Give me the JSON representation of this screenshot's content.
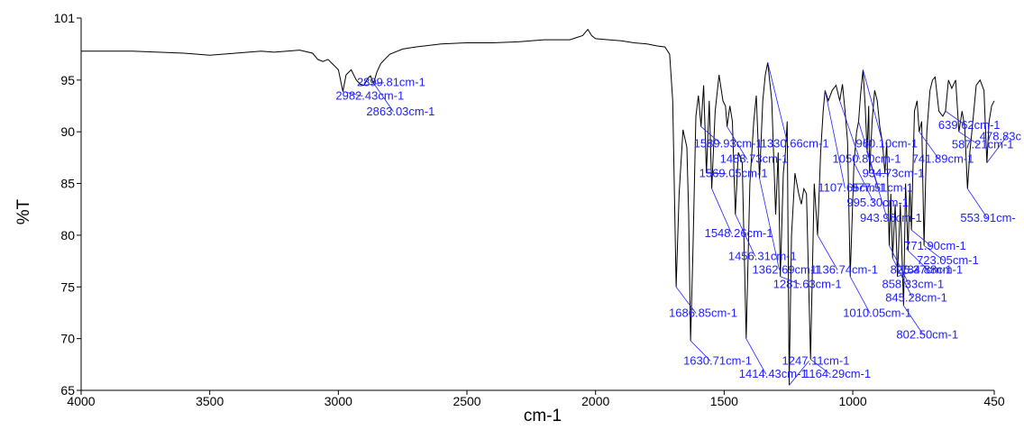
{
  "chart_data": {
    "type": "line",
    "title": "",
    "xlabel": "cm-1",
    "ylabel": "%T",
    "xlim": [
      4000,
      450
    ],
    "ylim": [
      65,
      101
    ],
    "x_reversed": true,
    "grid": false,
    "xticks": [
      4000,
      3500,
      3000,
      2500,
      2000,
      1500,
      1000,
      450
    ],
    "yticks": [
      65,
      70,
      75,
      80,
      85,
      90,
      95,
      101
    ],
    "series_color": "#000000",
    "annotation_color": "#2020ff",
    "spectrum": {
      "x": [
        4000,
        3900,
        3800,
        3700,
        3600,
        3500,
        3400,
        3300,
        3250,
        3200,
        3150,
        3100,
        3080,
        3060,
        3040,
        3020,
        3000,
        2982.43,
        2970,
        2950,
        2930,
        2915,
        2899.81,
        2885,
        2875,
        2863.03,
        2850,
        2835,
        2800,
        2750,
        2700,
        2600,
        2500,
        2400,
        2300,
        2200,
        2100,
        2050,
        2030,
        2015,
        2000,
        1950,
        1900,
        1850,
        1800,
        1760,
        1730,
        1712,
        1700,
        1686.85,
        1675,
        1660,
        1645,
        1638,
        1630.71,
        1622,
        1610,
        1600,
        1589.93,
        1580,
        1569.05,
        1558,
        1548.26,
        1535,
        1520,
        1505,
        1495,
        1488.73,
        1478,
        1468,
        1456.31,
        1445,
        1430,
        1414.43,
        1400,
        1385,
        1375,
        1362.69,
        1350,
        1340,
        1330.66,
        1315,
        1300,
        1290,
        1281.63,
        1270,
        1262,
        1255,
        1247.11,
        1238,
        1225,
        1210,
        1200,
        1190,
        1180,
        1164.29,
        1150,
        1136.74,
        1125,
        1115,
        1107.65,
        1095,
        1080,
        1065,
        1050.8,
        1040,
        1030,
        1020,
        1010.05,
        1002,
        995.3,
        985,
        977.51,
        970,
        960.1,
        952,
        943.96,
        938,
        934.73,
        925,
        915,
        905,
        895,
        885,
        875,
        868,
        858.33,
        852,
        845.28,
        835,
        826.37,
        815,
        802.5,
        795,
        784.88,
        778,
        771.9,
        760,
        750,
        741.89,
        732,
        723.05,
        712,
        700,
        690,
        680,
        665,
        650,
        639.62,
        628,
        615,
        600,
        587.21,
        575,
        565,
        553.91,
        545,
        535,
        520,
        505,
        490,
        478.83,
        470,
        460,
        450
      ],
      "y": [
        97.8,
        97.8,
        97.8,
        97.7,
        97.6,
        97.4,
        97.6,
        97.8,
        97.7,
        97.8,
        97.9,
        97.6,
        97.0,
        96.8,
        97.0,
        96.5,
        96.0,
        93.9,
        95.5,
        96.0,
        95.0,
        94.6,
        94.5,
        95.2,
        95.4,
        94.7,
        95.8,
        96.6,
        97.5,
        98.0,
        98.2,
        98.5,
        98.6,
        98.6,
        98.7,
        98.9,
        98.9,
        99.3,
        99.9,
        99.3,
        99.0,
        98.9,
        98.8,
        98.6,
        98.5,
        98.3,
        98.2,
        97.5,
        93.0,
        75.0,
        84.0,
        90.2,
        88.5,
        82.0,
        69.8,
        78.0,
        91.5,
        93.5,
        90.5,
        94.5,
        86.0,
        93.0,
        84.5,
        92.0,
        95.5,
        93.0,
        92.5,
        90.5,
        92.5,
        91.0,
        82.0,
        88.0,
        87.0,
        70.0,
        85.0,
        91.0,
        93.5,
        85.5,
        93.0,
        95.5,
        96.7,
        93.0,
        82.0,
        88.0,
        76.0,
        86.0,
        88.0,
        91.0,
        65.5,
        80.0,
        86.0,
        84.0,
        83.0,
        84.5,
        84.0,
        68.0,
        85.0,
        80.0,
        88.0,
        92.0,
        94.0,
        93.0,
        94.0,
        94.5,
        93.0,
        94.6,
        92.0,
        89.0,
        76.0,
        82.0,
        87.0,
        90.0,
        91.0,
        93.5,
        96.0,
        92.5,
        88.0,
        92.5,
        86.0,
        91.0,
        94.0,
        93.0,
        90.5,
        89.0,
        86.0,
        89.0,
        79.0,
        84.0,
        77.8,
        83.0,
        76.0,
        83.0,
        73.2,
        85.0,
        78.5,
        85.0,
        80.5,
        92.0,
        93.0,
        90.0,
        91.0,
        79.0,
        90.0,
        94.0,
        95.0,
        95.3,
        92.0,
        91.5,
        92.0,
        95.0,
        94.2,
        95.0,
        90.0,
        92.0,
        90.5,
        84.5,
        88.0,
        90.5,
        94.5,
        95.0,
        94.0,
        87.0,
        91.0,
        92.5,
        93.0
      ]
    },
    "annotations": [
      {
        "label": "2899.81cm-1",
        "peak": 2899.81,
        "ty": 94.4
      },
      {
        "label": "2982.43cm-1",
        "peak": 2982.43,
        "ty": 93.1
      },
      {
        "label": "2863.03cm-1",
        "peak": 2863.03,
        "ty": 91.6
      },
      {
        "label": "1589.93cm-1",
        "peak": 1589.93,
        "ty": 88.5
      },
      {
        "label": "1330.66cm-1",
        "peak": 1330.66,
        "ty": 88.5
      },
      {
        "label": "960.10cm-1",
        "peak": 960.1,
        "ty": 88.5
      },
      {
        "label": "1488.73cm-1",
        "peak": 1488.73,
        "ty": 87.0
      },
      {
        "label": "1050.80cm-1",
        "peak": 1050.8,
        "ty": 87.0
      },
      {
        "label": "741.89cm-1",
        "peak": 741.89,
        "ty": 87.0
      },
      {
        "label": "1569.05cm-1",
        "peak": 1569.05,
        "ty": 85.6
      },
      {
        "label": "934.73cm-1",
        "peak": 934.73,
        "ty": 85.6
      },
      {
        "label": "1107.65cm-1",
        "peak": 1107.65,
        "ty": 84.2
      },
      {
        "label": "977.51cm-1",
        "peak": 977.51,
        "ty": 84.2
      },
      {
        "label": "995.30cm-1",
        "peak": 995.3,
        "ty": 82.8
      },
      {
        "label": "943.96cm-1",
        "peak": 943.96,
        "ty": 81.3
      },
      {
        "label": "553.91cm-",
        "peak": 553.91,
        "ty": 81.3
      },
      {
        "label": "1548.26cm-1",
        "peak": 1548.26,
        "ty": 79.8
      },
      {
        "label": "771.90cm-1",
        "peak": 771.9,
        "ty": 78.6
      },
      {
        "label": "1456.31cm-1",
        "peak": 1456.31,
        "ty": 77.6
      },
      {
        "label": "723.05cm-1",
        "peak": 723.05,
        "ty": 77.2
      },
      {
        "label": "1362.69cm-1",
        "peak": 1362.69,
        "ty": 76.3
      },
      {
        "label": "1136.74cm-1",
        "peak": 1136.74,
        "ty": 76.3
      },
      {
        "label": "826.37cm-1",
        "peak": 826.37,
        "ty": 76.3
      },
      {
        "label": "784.88cm-1",
        "peak": 784.88,
        "ty": 76.3
      },
      {
        "label": "1281.63cm-1",
        "peak": 1281.63,
        "ty": 74.9
      },
      {
        "label": "858.33cm-1",
        "peak": 858.33,
        "ty": 74.9
      },
      {
        "label": "845.28cm-1",
        "peak": 845.28,
        "ty": 73.6
      },
      {
        "label": "1686.85cm-1",
        "peak": 1686.85,
        "ty": 72.1
      },
      {
        "label": "1010.05cm-1",
        "peak": 1010.05,
        "ty": 72.1
      },
      {
        "label": "802.50cm-1",
        "peak": 802.5,
        "ty": 70.0
      },
      {
        "label": "1630.71cm-1",
        "peak": 1630.71,
        "ty": 67.5
      },
      {
        "label": "1247.11cm-1",
        "peak": 1247.11,
        "ty": 67.5
      },
      {
        "label": "1414.43cm-1",
        "peak": 1414.43,
        "ty": 66.2
      },
      {
        "label": "1164.29cm-1",
        "peak": 1164.29,
        "ty": 66.2
      },
      {
        "label": "639.62cm-1",
        "peak": 639.62,
        "ty": 90.3
      },
      {
        "label": "587.21cm-1",
        "peak": 587.21,
        "ty": 88.4
      },
      {
        "label": "478.83c",
        "peak": 478.83,
        "ty": 89.2
      }
    ]
  }
}
